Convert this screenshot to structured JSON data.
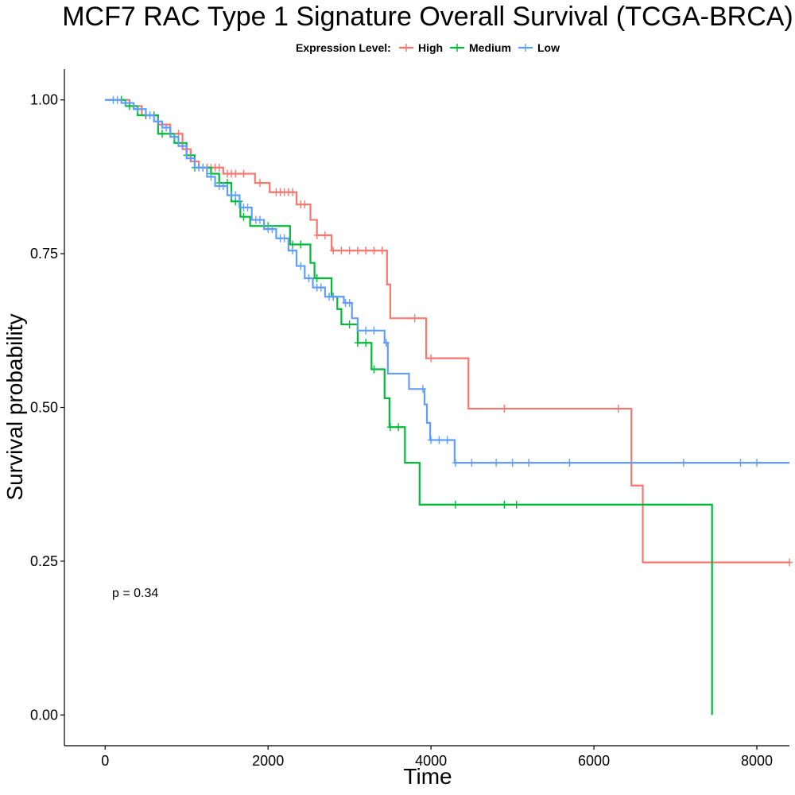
{
  "chart_data": {
    "type": "line",
    "title": "MCF7 RAC Type 1 Signature Overall Survival (TCGA-BRCA)",
    "xlabel": "Time",
    "ylabel": "Survival probability",
    "xlim": [
      -500,
      8400
    ],
    "ylim": [
      -0.05,
      1.05
    ],
    "x_ticks": [
      0,
      2000,
      4000,
      6000,
      8000
    ],
    "x_tick_labels": [
      "0",
      "2000",
      "4000",
      "6000",
      "8000"
    ],
    "y_ticks": [
      0,
      0.25,
      0.5,
      0.75,
      1.0
    ],
    "y_tick_labels": [
      "0.00",
      "0.25",
      "0.50",
      "0.75",
      "1.00"
    ],
    "grid": false,
    "legend": {
      "title": "Expression Level:",
      "placement": "top",
      "entries": [
        "High",
        "Medium",
        "Low"
      ]
    },
    "annotation": "p = 0.34",
    "series": [
      {
        "name": "High",
        "color": "#F8766D",
        "steps": [
          [
            0,
            1.0
          ],
          [
            300,
            0.99
          ],
          [
            450,
            0.975
          ],
          [
            650,
            0.96
          ],
          [
            800,
            0.945
          ],
          [
            950,
            0.92
          ],
          [
            1050,
            0.9
          ],
          [
            1150,
            0.89
          ],
          [
            1450,
            0.88
          ],
          [
            1840,
            0.865
          ],
          [
            2020,
            0.85
          ],
          [
            2350,
            0.83
          ],
          [
            2520,
            0.805
          ],
          [
            2600,
            0.78
          ],
          [
            2780,
            0.755
          ],
          [
            3460,
            0.7
          ],
          [
            3500,
            0.645
          ],
          [
            3940,
            0.58
          ],
          [
            4460,
            0.498
          ],
          [
            6460,
            0.373
          ],
          [
            6600,
            0.248
          ]
        ],
        "end": 8400,
        "censor": [
          500,
          700,
          900,
          1200,
          1250,
          1300,
          1350,
          1400,
          1500,
          1550,
          1600,
          1700,
          1900,
          2100,
          2150,
          2200,
          2250,
          2300,
          2400,
          2450,
          2600,
          2700,
          2800,
          2900,
          3000,
          3100,
          3200,
          3300,
          3400,
          3800,
          4000,
          4900,
          6300,
          8400
        ]
      },
      {
        "name": "Medium",
        "color": "#00BA38",
        "steps": [
          [
            0,
            1.0
          ],
          [
            250,
            0.99
          ],
          [
            400,
            0.975
          ],
          [
            650,
            0.945
          ],
          [
            850,
            0.93
          ],
          [
            1000,
            0.91
          ],
          [
            1100,
            0.89
          ],
          [
            1300,
            0.88
          ],
          [
            1400,
            0.865
          ],
          [
            1550,
            0.835
          ],
          [
            1660,
            0.81
          ],
          [
            1780,
            0.795
          ],
          [
            2270,
            0.765
          ],
          [
            2520,
            0.735
          ],
          [
            2570,
            0.71
          ],
          [
            2780,
            0.68
          ],
          [
            2850,
            0.66
          ],
          [
            2900,
            0.635
          ],
          [
            3100,
            0.605
          ],
          [
            3270,
            0.562
          ],
          [
            3430,
            0.515
          ],
          [
            3490,
            0.468
          ],
          [
            3680,
            0.41
          ],
          [
            3860,
            0.342
          ],
          [
            7450,
            0.0
          ]
        ],
        "end": 7450,
        "censor": [
          200,
          300,
          500,
          600,
          700,
          800,
          900,
          1000,
          1100,
          1200,
          1300,
          1400,
          1500,
          1600,
          1650,
          1700,
          2000,
          2300,
          2400,
          2600,
          2800,
          3000,
          3100,
          3200,
          3300,
          3500,
          3600,
          4300,
          4900,
          5050
        ]
      },
      {
        "name": "Low",
        "color": "#619CFF",
        "steps": [
          [
            0,
            1.0
          ],
          [
            200,
            0.995
          ],
          [
            350,
            0.985
          ],
          [
            500,
            0.975
          ],
          [
            600,
            0.965
          ],
          [
            700,
            0.955
          ],
          [
            800,
            0.94
          ],
          [
            900,
            0.925
          ],
          [
            1000,
            0.905
          ],
          [
            1100,
            0.89
          ],
          [
            1250,
            0.875
          ],
          [
            1350,
            0.86
          ],
          [
            1500,
            0.845
          ],
          [
            1650,
            0.825
          ],
          [
            1800,
            0.805
          ],
          [
            1950,
            0.79
          ],
          [
            2100,
            0.775
          ],
          [
            2250,
            0.755
          ],
          [
            2350,
            0.73
          ],
          [
            2450,
            0.71
          ],
          [
            2550,
            0.695
          ],
          [
            2700,
            0.68
          ],
          [
            2930,
            0.67
          ],
          [
            3030,
            0.645
          ],
          [
            3100,
            0.625
          ],
          [
            3430,
            0.605
          ],
          [
            3470,
            0.555
          ],
          [
            3730,
            0.53
          ],
          [
            3920,
            0.505
          ],
          [
            3950,
            0.475
          ],
          [
            3990,
            0.447
          ],
          [
            4290,
            0.41
          ]
        ],
        "end": 8400,
        "censor": [
          100,
          150,
          250,
          400,
          550,
          650,
          750,
          850,
          950,
          1050,
          1150,
          1200,
          1300,
          1400,
          1450,
          1550,
          1600,
          1700,
          1750,
          1850,
          1900,
          2000,
          2050,
          2150,
          2200,
          2300,
          2400,
          2500,
          2600,
          2650,
          2750,
          2800,
          2950,
          3000,
          3200,
          3300,
          3450,
          3900,
          4000,
          4100,
          4200,
          4300,
          4500,
          4800,
          5000,
          5200,
          5700,
          7100,
          7800,
          8000
        ]
      }
    ]
  }
}
